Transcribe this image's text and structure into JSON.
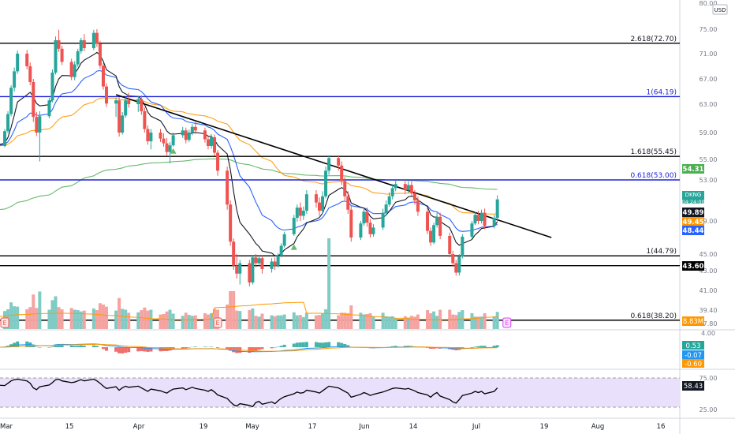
{
  "currency_label": "USD",
  "symbol": "DKNG",
  "countdown": "04:24:00",
  "colors": {
    "up": "#26a69a",
    "down": "#ef5350",
    "up_volume": "#80cbc4",
    "down_volume": "#f5a3a1",
    "ema9": "#131722",
    "ema20": "#2962ff",
    "ema50": "#ff9800",
    "ema200": "#4caf50",
    "blue_level": "#1e22d6",
    "black_level": "#000000",
    "rsi_band": "#e9e0fb",
    "rsi_line": "#000000",
    "macd_line": "#2196f3",
    "macd_signal": "#ff9800",
    "earnings_badge": "#e040fb"
  },
  "chart_data": [
    {
      "type": "candlestick",
      "panel": "price",
      "y_axis_ticks": [
        "80.00",
        "75.00",
        "71.00",
        "67.00",
        "63.00",
        "59.00",
        "55.00",
        "53.00",
        "49.00",
        "45.00",
        "43.00",
        "41.00",
        "39.40",
        "37.80",
        "4.00"
      ],
      "x_axis_ticks": [
        "Mar",
        "15",
        "Apr",
        "19",
        "May",
        "17",
        "Jun",
        "14",
        "Jul",
        "19",
        "Aug",
        "16"
      ],
      "fib_levels": [
        {
          "label": "2.618(72.70)",
          "value": 72.7,
          "color": "black"
        },
        {
          "label": "1(64.19)",
          "value": 64.19,
          "color": "blue"
        },
        {
          "label": "1.618(55.45)",
          "value": 55.45,
          "color": "black"
        },
        {
          "label": "0.618(53.00)",
          "value": 53.0,
          "color": "blue"
        },
        {
          "label": "1(44.79)",
          "value": 44.79,
          "color": "black"
        },
        {
          "label": "",
          "value": 43.6,
          "color": "black"
        },
        {
          "label": "0.618(38.20)",
          "value": 38.2,
          "color": "black"
        }
      ],
      "trendline": {
        "start": {
          "x": "2021-04-05",
          "y": 64.5
        },
        "end": {
          "x": "2021-08-20",
          "y": 47.0
        }
      },
      "price_labels": [
        {
          "text": "54.31",
          "value": 54.31,
          "color": "#4caf50"
        },
        {
          "text": "51.13",
          "value": 51.13,
          "color": "#26a69a"
        },
        {
          "text": "49.89",
          "value": 49.89,
          "color": "#131722"
        },
        {
          "text": "49.45",
          "value": 49.45,
          "color": "#ff9800"
        },
        {
          "text": "48.44",
          "value": 48.44,
          "color": "#2962ff"
        },
        {
          "text": "43.60",
          "value": 43.6,
          "color": "#000000"
        }
      ],
      "ohlc": [
        [
          57.5,
          58.4,
          56.6,
          57.0
        ],
        [
          57.0,
          59.5,
          56.8,
          59.2
        ],
        [
          59.2,
          62.0,
          58.9,
          61.6
        ],
        [
          61.6,
          66.0,
          61.3,
          65.6
        ],
        [
          65.6,
          68.8,
          65.0,
          68.2
        ],
        [
          68.2,
          71.5,
          67.8,
          71.0
        ],
        [
          71.0,
          71.6,
          68.5,
          69.0
        ],
        [
          69.0,
          69.6,
          66.0,
          66.5
        ],
        [
          66.5,
          67.0,
          60.5,
          61.2
        ],
        [
          61.2,
          61.9,
          58.5,
          59.0
        ],
        [
          59.0,
          62.0,
          54.8,
          61.3
        ],
        [
          61.3,
          64.0,
          61.0,
          63.6
        ],
        [
          63.6,
          68.5,
          63.3,
          68.0
        ],
        [
          68.0,
          73.8,
          67.7,
          73.2
        ],
        [
          73.2,
          74.9,
          71.3,
          71.8
        ],
        [
          71.8,
          72.3,
          69.2,
          69.7
        ],
        [
          69.7,
          70.2,
          66.8,
          67.3
        ],
        [
          67.3,
          69.8,
          66.8,
          69.3
        ],
        [
          69.3,
          71.8,
          68.9,
          71.4
        ],
        [
          71.4,
          73.6,
          71.0,
          73.2
        ],
        [
          73.2,
          74.2,
          71.4,
          71.9
        ],
        [
          71.9,
          74.9,
          71.6,
          74.4
        ],
        [
          74.4,
          75.0,
          72.1,
          72.6
        ],
        [
          72.6,
          73.1,
          68.6,
          69.1
        ],
        [
          69.1,
          69.5,
          65.3,
          65.8
        ],
        [
          65.8,
          66.3,
          62.6,
          63.1
        ],
        [
          63.1,
          64.0,
          61.2,
          63.6
        ],
        [
          63.6,
          64.1,
          58.4,
          59.0
        ],
        [
          59.0,
          61.9,
          58.7,
          61.4
        ],
        [
          61.4,
          64.1,
          61.1,
          63.6
        ],
        [
          63.6,
          64.8,
          62.5,
          63.0
        ],
        [
          63.0,
          64.3,
          61.9,
          63.8
        ],
        [
          63.8,
          64.4,
          61.5,
          62.0
        ],
        [
          62.0,
          62.5,
          59.0,
          59.5
        ],
        [
          59.5,
          60.0,
          57.2,
          57.7
        ],
        [
          57.7,
          59.5,
          56.5,
          59.0
        ],
        [
          59.0,
          59.5,
          57.6,
          58.1
        ],
        [
          58.1,
          58.9,
          56.9,
          57.4
        ],
        [
          57.4,
          58.2,
          55.6,
          56.1
        ],
        [
          56.1,
          57.6,
          54.6,
          57.1
        ],
        [
          57.1,
          59.0,
          56.9,
          58.6
        ],
        [
          58.6,
          59.8,
          58.2,
          59.3
        ],
        [
          59.3,
          59.7,
          57.4,
          57.9
        ],
        [
          57.9,
          59.4,
          57.6,
          59.0
        ],
        [
          59.0,
          60.2,
          58.6,
          59.8
        ],
        [
          59.8,
          60.5,
          58.8,
          59.3
        ],
        [
          59.3,
          59.7,
          57.5,
          58.0
        ],
        [
          58.0,
          58.4,
          56.5,
          57.0
        ],
        [
          57.0,
          58.8,
          56.6,
          58.3
        ],
        [
          58.3,
          58.7,
          55.5,
          56.0
        ],
        [
          56.0,
          56.4,
          53.4,
          53.9
        ],
        [
          53.9,
          54.3,
          50.1,
          50.6
        ],
        [
          50.6,
          51.0,
          46.0,
          46.5
        ],
        [
          46.5,
          46.9,
          43.1,
          43.6
        ],
        [
          43.6,
          45.0,
          42.2,
          42.7
        ],
        [
          42.7,
          44.3,
          41.6,
          43.9
        ],
        [
          43.9,
          44.3,
          41.4,
          41.8
        ],
        [
          41.8,
          44.9,
          41.6,
          44.6
        ],
        [
          44.6,
          45.0,
          43.4,
          43.9
        ],
        [
          43.9,
          44.9,
          43.5,
          44.5
        ],
        [
          44.5,
          44.8,
          42.7,
          43.2
        ],
        [
          43.2,
          44.5,
          42.8,
          44.1
        ],
        [
          44.1,
          44.6,
          43.1,
          43.6
        ],
        [
          43.6,
          45.1,
          43.4,
          44.8
        ],
        [
          44.8,
          46.3,
          44.6,
          46.0
        ],
        [
          46.0,
          47.7,
          45.8,
          47.4
        ],
        [
          47.4,
          49.6,
          47.2,
          49.3
        ],
        [
          49.3,
          50.6,
          48.9,
          50.3
        ],
        [
          50.3,
          50.8,
          49.0,
          49.5
        ],
        [
          49.5,
          50.4,
          49.1,
          50.0
        ],
        [
          50.0,
          52.0,
          49.7,
          51.6
        ],
        [
          51.6,
          52.0,
          50.3,
          50.8
        ],
        [
          50.8,
          51.3,
          49.5,
          50.0
        ],
        [
          50.0,
          51.9,
          49.7,
          51.4
        ],
        [
          51.4,
          54.3,
          51.2,
          53.9
        ],
        [
          53.9,
          55.6,
          53.5,
          55.2
        ],
        [
          55.2,
          55.6,
          53.9,
          54.4
        ],
        [
          54.4,
          54.8,
          52.5,
          52.9
        ],
        [
          52.9,
          53.3,
          51.0,
          51.4
        ],
        [
          51.4,
          51.9,
          49.7,
          50.1
        ],
        [
          50.1,
          50.5,
          46.5,
          47.0
        ],
        [
          47.0,
          49.0,
          46.7,
          48.7
        ],
        [
          48.7,
          50.3,
          48.4,
          49.9
        ],
        [
          49.9,
          50.3,
          48.3,
          48.8
        ],
        [
          48.8,
          49.2,
          47.0,
          47.4
        ],
        [
          47.4,
          48.6,
          47.1,
          48.2
        ],
        [
          48.2,
          50.2,
          47.9,
          49.8
        ],
        [
          49.8,
          51.0,
          49.5,
          50.6
        ],
        [
          50.6,
          51.8,
          50.4,
          51.4
        ],
        [
          51.4,
          52.6,
          51.1,
          52.2
        ],
        [
          52.2,
          53.0,
          51.9,
          52.6
        ],
        [
          52.6,
          53.1,
          51.6,
          52.0
        ],
        [
          52.0,
          52.9,
          51.7,
          52.5
        ],
        [
          52.5,
          52.9,
          51.3,
          51.7
        ],
        [
          51.7,
          52.0,
          50.6,
          51.0
        ],
        [
          51.0,
          51.4,
          49.5,
          49.9
        ],
        [
          49.9,
          50.3,
          47.4,
          47.8
        ],
        [
          47.8,
          48.2,
          46.0,
          46.4
        ],
        [
          46.4,
          48.8,
          46.2,
          48.5
        ],
        [
          48.5,
          49.8,
          48.2,
          49.4
        ],
        [
          49.4,
          49.8,
          46.8,
          47.2
        ],
        [
          47.2,
          47.6,
          44.6,
          45.0
        ],
        [
          45.0,
          45.4,
          43.5,
          43.9
        ],
        [
          43.9,
          44.3,
          42.5,
          42.8
        ],
        [
          42.8,
          45.0,
          42.5,
          44.7
        ],
        [
          44.7,
          47.4,
          44.5,
          47.1
        ],
        [
          47.1,
          49.0,
          46.8,
          48.7
        ],
        [
          48.7,
          49.9,
          48.5,
          49.6
        ],
        [
          49.6,
          50.0,
          48.6,
          49.0
        ],
        [
          49.0,
          50.1,
          48.7,
          49.8
        ],
        [
          49.8,
          50.2,
          48.0,
          48.4
        ],
        [
          48.4,
          49.6,
          48.1,
          49.3
        ],
        [
          49.3,
          51.5,
          49.0,
          51.1
        ]
      ]
    },
    {
      "type": "bar",
      "panel": "volume",
      "current_label": "8.83M",
      "earnings_markers": [
        "E",
        "E",
        "E"
      ]
    },
    {
      "type": "histogram",
      "panel": "macd",
      "labels": [
        "0.53",
        "-0.07",
        "-0.60"
      ]
    },
    {
      "type": "line",
      "panel": "rsi",
      "current_label": "58.43",
      "y_axis_ticks": [
        "75.00",
        "25.00"
      ],
      "ylim": [
        0,
        100
      ],
      "values": [
        63,
        62,
        66,
        70,
        72,
        73,
        70,
        66,
        58,
        55,
        60,
        63,
        67,
        72,
        73,
        70,
        67,
        68,
        70,
        72,
        70,
        73,
        70,
        66,
        61,
        57,
        60,
        54,
        58,
        61,
        59,
        61,
        58,
        55,
        52,
        56,
        53,
        51,
        49,
        53,
        56,
        58,
        55,
        57,
        59,
        57,
        54,
        52,
        55,
        51,
        46,
        40,
        34,
        29,
        27,
        31,
        28,
        26,
        33,
        35,
        30,
        34,
        31,
        36,
        40,
        43,
        48,
        51,
        49,
        50,
        54,
        51,
        49,
        53,
        57,
        61,
        58,
        55,
        52,
        49,
        42,
        47,
        50,
        48,
        45,
        47,
        51,
        53,
        55,
        57,
        58,
        56,
        57,
        55,
        53,
        50,
        46,
        42,
        47,
        50,
        44,
        38,
        34,
        32,
        38,
        45,
        49,
        52,
        50,
        52,
        48,
        52,
        58
      ]
    }
  ]
}
